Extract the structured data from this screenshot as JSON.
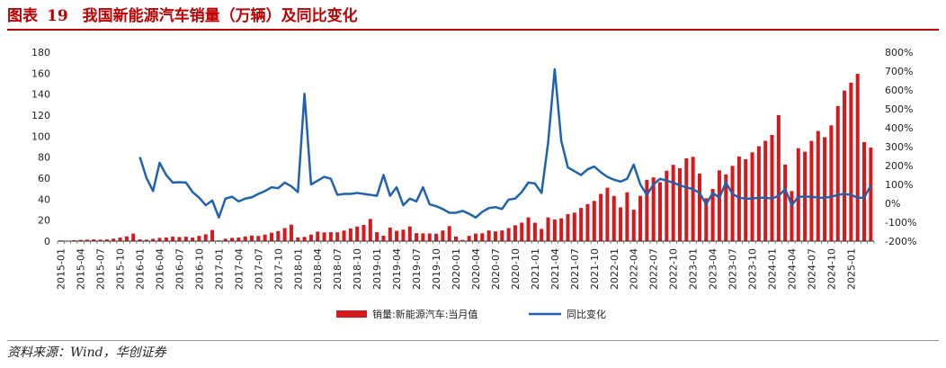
{
  "figure": {
    "label": "图表",
    "number": "19",
    "title": "我国新能源汽车销量（万辆）及同比变化"
  },
  "source": "资料来源：Wind，华创证券",
  "colors": {
    "title": "#c00000",
    "bars": "#d7191c",
    "line": "#1f63b0"
  },
  "chart_data": {
    "type": "bar+line",
    "y_left": {
      "ylim": [
        0,
        180
      ],
      "ticks": [
        0,
        20,
        40,
        60,
        80,
        100,
        120,
        140,
        160,
        180
      ]
    },
    "y_right": {
      "ylim": [
        -200,
        800
      ],
      "ticks": [
        "-200%",
        "-100%",
        "0%",
        "100%",
        "200%",
        "300%",
        "400%",
        "500%",
        "600%",
        "700%",
        "800%"
      ]
    },
    "x_tick_labels": [
      "2015-01",
      "2015-04",
      "2015-07",
      "2015-10",
      "2016-01",
      "2016-04",
      "2016-07",
      "2016-10",
      "2017-01",
      "2017-04",
      "2017-07",
      "2017-10",
      "2018-01",
      "2018-04",
      "2018-07",
      "2018-10",
      "2019-01",
      "2019-04",
      "2019-07",
      "2019-10",
      "2020-01",
      "2020-04",
      "2020-07",
      "2020-10",
      "2021-01",
      "2021-04",
      "2021-07",
      "2021-10",
      "2022-01",
      "2022-04",
      "2022-07",
      "2022-10",
      "2023-01",
      "2023-04",
      "2023-07",
      "2023-10",
      "2024-01",
      "2024-04",
      "2024-07",
      "2024-10",
      "2025-01"
    ],
    "start_month": "2015-01",
    "legend_placement": "bottom-center",
    "series": [
      {
        "name": "销量:新能源汽车:当月值",
        "kind": "bar",
        "axis": "left",
        "values": [
          0.7,
          0.4,
          0.9,
          1.2,
          1.4,
          1.7,
          1.4,
          1.6,
          2.4,
          3.4,
          4.5,
          7.2,
          1.7,
          1.4,
          2.2,
          3.1,
          3.5,
          4.3,
          3.9,
          4.2,
          3.4,
          5.0,
          6.5,
          10.6,
          0.7,
          2.3,
          3.1,
          3.4,
          4.4,
          5.3,
          4.9,
          6.2,
          8.0,
          9.5,
          12.4,
          15.7,
          3.6,
          4.0,
          6.2,
          9.0,
          8.3,
          8.5,
          8.4,
          10.1,
          12.1,
          13.9,
          15.4,
          21.1,
          8.5,
          5.2,
          12.9,
          9.8,
          10.9,
          14.0,
          7.6,
          7.4,
          7.3,
          7.1,
          10.1,
          14.3,
          4.4,
          1.2,
          5.0,
          7.2,
          7.5,
          10.2,
          9.3,
          10.2,
          12.4,
          15.1,
          17.6,
          22.6,
          17.5,
          11.6,
          22.6,
          20.6,
          21.7,
          25.7,
          27.1,
          31.6,
          35.3,
          38.3,
          45.0,
          50.9,
          43.1,
          32.2,
          46.5,
          29.9,
          43.1,
          58.4,
          60.7,
          56.2,
          67.1,
          72.7,
          69.5,
          78.9,
          80.3,
          64.3,
          40.8,
          49.7,
          67.4,
          63.6,
          71.7,
          80.6,
          78.0,
          84.6,
          90.4,
          95.6,
          101.2,
          120.1,
          72.9,
          47.7,
          88.5,
          85.2,
          95.5,
          104.9,
          99.1,
          110.3,
          128.7,
          143.4,
          151.0,
          159.4,
          94.4,
          89.1
        ]
      },
      {
        "name": "同比变化",
        "kind": "line",
        "axis": "right",
        "start_index": 12,
        "values": [
          245,
          135,
          65,
          215,
          150,
          110,
          112,
          110,
          60,
          30,
          -10,
          15,
          -75,
          25,
          35,
          10,
          25,
          32,
          50,
          65,
          85,
          80,
          110,
          90,
          60,
          580,
          100,
          120,
          140,
          130,
          45,
          50,
          50,
          55,
          50,
          45,
          40,
          150,
          40,
          85,
          -10,
          25,
          10,
          85,
          -5,
          -15,
          -30,
          -50,
          -50,
          -40,
          -55,
          -75,
          -45,
          -25,
          -20,
          -30,
          20,
          25,
          60,
          110,
          105,
          55,
          320,
          710,
          330,
          190,
          170,
          150,
          180,
          195,
          165,
          140,
          125,
          115,
          130,
          205,
          100,
          45,
          100,
          130,
          120,
          110,
          95,
          85,
          75,
          55,
          -5,
          55,
          30,
          110,
          50,
          30,
          25,
          25,
          30,
          30,
          25,
          40,
          75,
          -10,
          35,
          35,
          35,
          30,
          30,
          35,
          45,
          50,
          45,
          30,
          30,
          95
        ]
      }
    ]
  }
}
